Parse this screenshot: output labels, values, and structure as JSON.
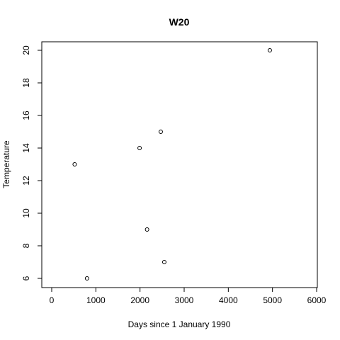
{
  "chart_data": {
    "type": "scatter",
    "title": "W20",
    "xlabel": "Days since 1 January 1990",
    "ylabel": "Temperature",
    "xlim": [
      0,
      6000
    ],
    "ylim": [
      6,
      20
    ],
    "x_ticks": [
      0,
      1000,
      2000,
      3000,
      4000,
      5000,
      6000
    ],
    "y_ticks": [
      6,
      8,
      10,
      12,
      14,
      16,
      18,
      20
    ],
    "grid": false,
    "marker": "open-circle",
    "points": [
      {
        "x": 520,
        "y": 13
      },
      {
        "x": 800,
        "y": 6
      },
      {
        "x": 1990,
        "y": 14
      },
      {
        "x": 2160,
        "y": 9
      },
      {
        "x": 2470,
        "y": 15
      },
      {
        "x": 2550,
        "y": 7
      },
      {
        "x": 4940,
        "y": 20
      }
    ]
  }
}
